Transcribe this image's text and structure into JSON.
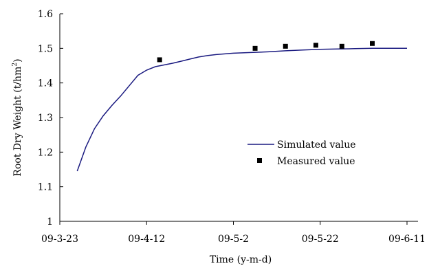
{
  "chart_data": {
    "type": "line",
    "title": "",
    "xlabel": "Time (y-m-d)",
    "ylabel": "Root Dry Weight (t/hm²)",
    "ylabel_parts": {
      "main": "Root Dry Weight (t/hm",
      "superscript": "2",
      "tail": ")"
    },
    "ylim": [
      1,
      1.6
    ],
    "yticks": [
      1,
      1.1,
      1.2,
      1.3,
      1.4,
      1.5,
      1.6
    ],
    "ytick_labels": [
      "1",
      "1.1",
      "1.2",
      "1.3",
      "1.4",
      "1.5",
      "1.6"
    ],
    "xlim": [
      "2009-03-23",
      "2009-06-11"
    ],
    "xticks": [
      "2009-03-23",
      "2009-04-12",
      "2009-05-02",
      "2009-05-22",
      "2009-06-11"
    ],
    "xtick_labels": [
      "09-3-23",
      "09-4-12",
      "09-5-2",
      "09-5-22",
      "09-6-11"
    ],
    "grid": false,
    "legend_position": "center-right",
    "series": [
      {
        "name": "Simulated value",
        "kind": "line",
        "color": "#1a1a80",
        "x": [
          "2009-03-27",
          "2009-03-29",
          "2009-03-31",
          "2009-04-02",
          "2009-04-04",
          "2009-04-06",
          "2009-04-08",
          "2009-04-10",
          "2009-04-12",
          "2009-04-14",
          "2009-04-16",
          "2009-04-18",
          "2009-04-20",
          "2009-04-22",
          "2009-04-24",
          "2009-04-26",
          "2009-04-28",
          "2009-04-30",
          "2009-05-02",
          "2009-05-06",
          "2009-05-10",
          "2009-05-14",
          "2009-05-18",
          "2009-05-22",
          "2009-05-26",
          "2009-05-30",
          "2009-06-03",
          "2009-06-07",
          "2009-06-11"
        ],
        "y": [
          1.145,
          1.215,
          1.268,
          1.305,
          1.335,
          1.362,
          1.392,
          1.422,
          1.437,
          1.447,
          1.452,
          1.457,
          1.463,
          1.469,
          1.475,
          1.479,
          1.482,
          1.484,
          1.486,
          1.488,
          1.49,
          1.493,
          1.495,
          1.497,
          1.498,
          1.499,
          1.5,
          1.5,
          1.5
        ]
      },
      {
        "name": "Measured value",
        "kind": "scatter",
        "color": "#000000",
        "x": [
          "2009-04-15",
          "2009-05-07",
          "2009-05-14",
          "2009-05-21",
          "2009-05-27",
          "2009-06-03"
        ],
        "y": [
          1.467,
          1.5,
          1.506,
          1.509,
          1.506,
          1.514
        ]
      }
    ]
  }
}
